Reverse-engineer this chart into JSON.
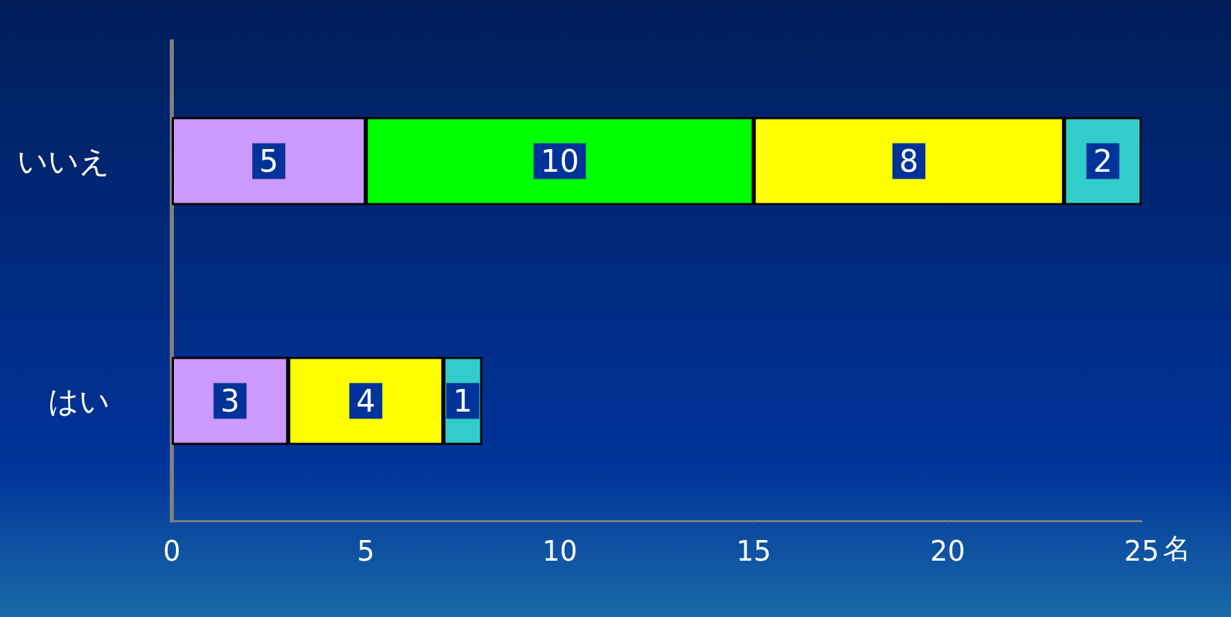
{
  "chart_data": {
    "type": "bar",
    "orientation": "horizontal",
    "stacked": true,
    "categories": [
      "いいえ",
      "はい"
    ],
    "xlabel": "名",
    "series": [
      {
        "color": "#cc99ff",
        "values": [
          5,
          3
        ]
      },
      {
        "color": "#00ff00",
        "values": [
          10,
          null
        ]
      },
      {
        "color": "#ffff00",
        "values": [
          8,
          4
        ]
      },
      {
        "color": "#33cccc",
        "values": [
          2,
          1
        ]
      }
    ],
    "xlim": [
      0,
      25
    ],
    "xticks": [
      0,
      5,
      10,
      15,
      20,
      25
    ],
    "grid": false,
    "data_labels": true
  }
}
